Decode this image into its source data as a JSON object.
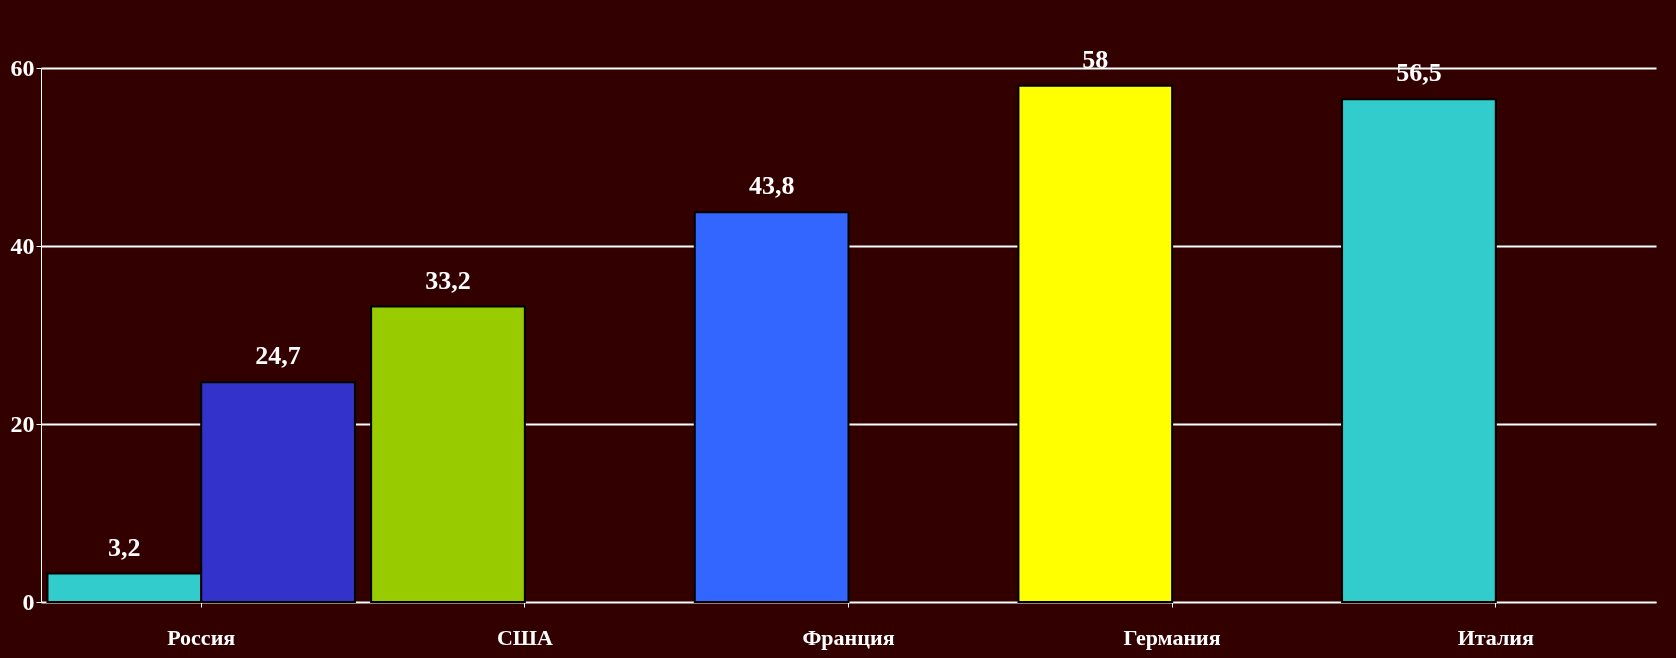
{
  "chart_data": {
    "type": "bar",
    "categories": [
      "Россия",
      "США",
      "Франция",
      "Германия",
      "Италия"
    ],
    "series": [
      {
        "colors": [
          "#33cccc",
          "#99cc00",
          "#3366ff",
          "#ffff00",
          "#33cccc"
        ],
        "values": [
          3.2,
          33.2,
          43.8,
          58,
          56.5
        ],
        "value_labels": [
          "3,2",
          "33,2",
          "43,8",
          "58",
          "56,5"
        ]
      },
      {
        "colors": [
          "#3333cc",
          null,
          null,
          null,
          null
        ],
        "values": [
          24.7,
          null,
          null,
          null,
          null
        ],
        "value_labels": [
          "24,7",
          null,
          null,
          null,
          null
        ]
      }
    ],
    "ylim": [
      0,
      60
    ],
    "yticks": [
      0,
      20,
      40,
      60
    ],
    "grid": "y"
  }
}
